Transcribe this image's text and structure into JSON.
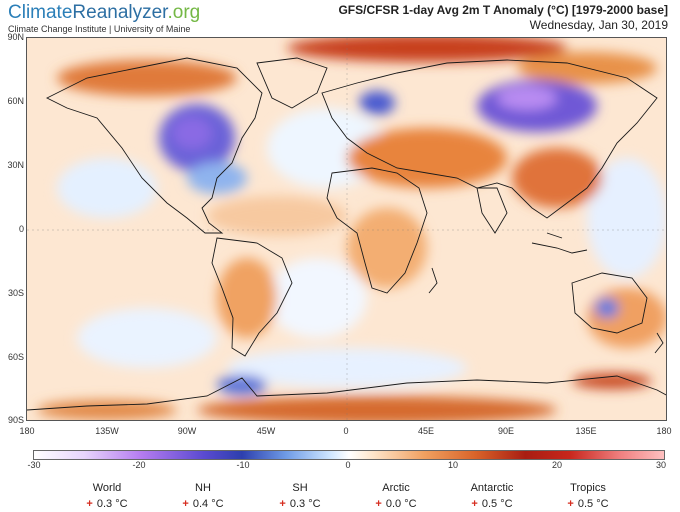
{
  "brand": {
    "name_part1": "Climate",
    "name_part2": "Reanalyzer",
    "name_part3": ".org",
    "subtitle": "Climate Change Institute | University of Maine"
  },
  "header": {
    "title": "GFS/CFSR 1-day Avg 2m T Anomaly (°C) [1979-2000 base]",
    "date": "Wednesday, Jan 30, 2019"
  },
  "map": {
    "lat_labels": [
      "90N",
      "60N",
      "30N",
      "0",
      "30S",
      "60S",
      "90S"
    ],
    "lon_labels": [
      "180",
      "135W",
      "90W",
      "45W",
      "0",
      "45E",
      "90E",
      "135E",
      "180"
    ],
    "lat_range": [
      -90,
      90
    ],
    "lon_range": [
      -180,
      180
    ]
  },
  "colorbar": {
    "range": [
      -30,
      30
    ],
    "ticks": [
      "-30",
      "-20",
      "-10",
      "0",
      "10",
      "20",
      "30"
    ],
    "colors": {
      "cold_extreme": "#ffffff",
      "purple": "#b57cf0",
      "blue": "#2d3fae",
      "light_blue": "#cfe6ff",
      "orange": "#f0a060",
      "red": "#c8261c",
      "hot_extreme": "#ffc0c0"
    }
  },
  "stats": [
    {
      "name": "World",
      "value": "0.3 °C",
      "sign": "+"
    },
    {
      "name": "NH",
      "value": "0.4 °C",
      "sign": "+"
    },
    {
      "name": "SH",
      "value": "0.3 °C",
      "sign": "+"
    },
    {
      "name": "Arctic",
      "value": "0.0 °C",
      "sign": "+"
    },
    {
      "name": "Antarctic",
      "value": "0.5 °C",
      "sign": "+"
    },
    {
      "name": "Tropics",
      "value": "0.5 °C",
      "sign": "+"
    }
  ]
}
